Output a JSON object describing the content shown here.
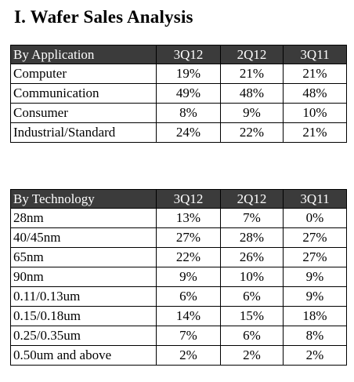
{
  "title": "I.  Wafer Sales Analysis",
  "application_table": {
    "headers": [
      "By Application",
      "3Q12",
      "2Q12",
      "3Q11"
    ],
    "rows": [
      [
        "Computer",
        "19%",
        "21%",
        "21%"
      ],
      [
        "Communication",
        "49%",
        "48%",
        "48%"
      ],
      [
        "Consumer",
        "8%",
        "9%",
        "10%"
      ],
      [
        "Industrial/Standard",
        "24%",
        "22%",
        "21%"
      ]
    ]
  },
  "technology_table": {
    "headers": [
      "By Technology",
      "3Q12",
      "2Q12",
      "3Q11"
    ],
    "rows": [
      [
        "28nm",
        "13%",
        "7%",
        "0%"
      ],
      [
        "40/45nm",
        "27%",
        "28%",
        "27%"
      ],
      [
        "65nm",
        "22%",
        "26%",
        "27%"
      ],
      [
        "90nm",
        "9%",
        "10%",
        "9%"
      ],
      [
        "0.11/0.13um",
        "6%",
        "6%",
        "9%"
      ],
      [
        "0.15/0.18um",
        "14%",
        "15%",
        "18%"
      ],
      [
        "0.25/0.35um",
        "7%",
        "6%",
        "8%"
      ],
      [
        "0.50um and above",
        "2%",
        "2%",
        "2%"
      ]
    ]
  },
  "colors": {
    "header_background": "#3b3b3b",
    "header_text": "#ffffff",
    "border": "#000000"
  }
}
